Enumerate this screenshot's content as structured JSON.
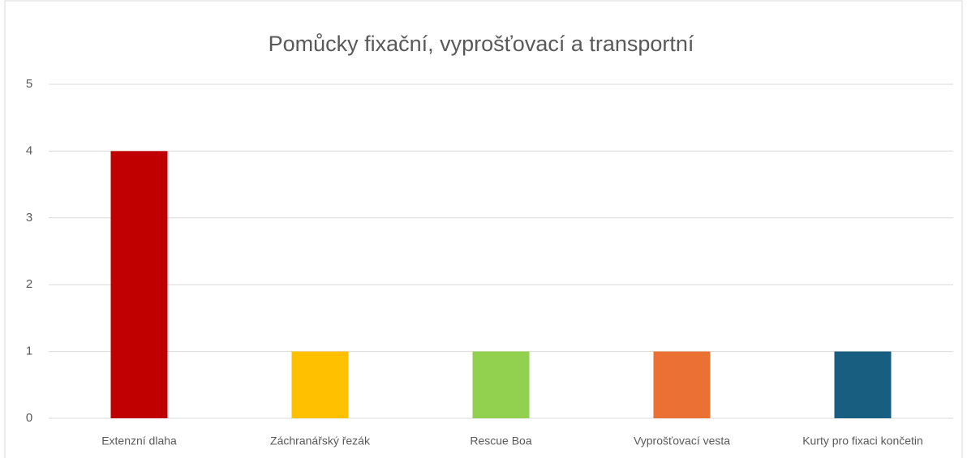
{
  "chart_data": {
    "type": "bar",
    "title": "Pomůcky fixační, vyprošťovací a transportní",
    "categories": [
      "Extenzní dlaha",
      "Záchranářský řezák",
      "Rescue Boa",
      "Vyprošťovací vesta",
      "Kurty pro fixaci končetin"
    ],
    "values": [
      4,
      1,
      1,
      1,
      1
    ],
    "colors": [
      "#c00000",
      "#ffc000",
      "#92d050",
      "#ea7033",
      "#175e80"
    ],
    "ylim": [
      0,
      5
    ],
    "yticks": [
      0,
      1,
      2,
      3,
      4,
      5
    ],
    "grid": true
  }
}
